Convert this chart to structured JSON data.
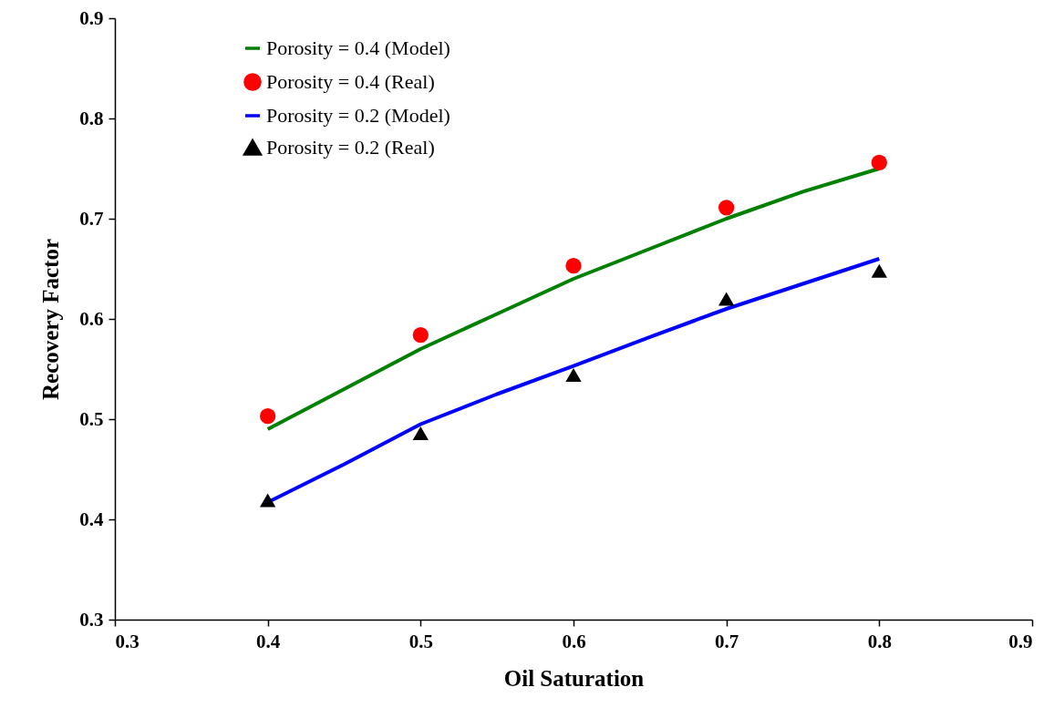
{
  "chart_data": {
    "type": "line",
    "xlabel": "Oil Saturation",
    "ylabel": "Recovery Factor",
    "xlim": [
      0.3,
      0.9
    ],
    "ylim": [
      0.3,
      0.9
    ],
    "xticks": [
      0.3,
      0.4,
      0.5,
      0.6,
      0.7,
      0.8,
      0.9
    ],
    "yticks": [
      0.3,
      0.4,
      0.5,
      0.6,
      0.7,
      0.8,
      0.9
    ],
    "legend": "top left",
    "series": [
      {
        "name": "Porosity = 0.4 (Model)",
        "marker": "none",
        "color": "#008000",
        "x": [
          0.4,
          0.45,
          0.5,
          0.55,
          0.6,
          0.65,
          0.7,
          0.75,
          0.8
        ],
        "values": [
          0.49,
          0.53,
          0.57,
          0.605,
          0.64,
          0.67,
          0.7,
          0.727,
          0.75
        ]
      },
      {
        "name": "Porosity = 0.4 (Real)",
        "type": "scatter",
        "marker": "circle",
        "color": "#ff0000",
        "x": [
          0.4,
          0.5,
          0.6,
          0.7,
          0.8
        ],
        "values": [
          0.503,
          0.584,
          0.653,
          0.711,
          0.756
        ]
      },
      {
        "name": "Porosity = 0.2 (Model)",
        "marker": "none",
        "color": "#0000ff",
        "x": [
          0.4,
          0.45,
          0.5,
          0.55,
          0.6,
          0.65,
          0.7,
          0.75,
          0.8
        ],
        "values": [
          0.417,
          0.455,
          0.495,
          0.525,
          0.553,
          0.582,
          0.61,
          0.635,
          0.66
        ]
      },
      {
        "name": "Porosity = 0.2 (Real)",
        "type": "scatter",
        "marker": "triangle",
        "color": "#000000",
        "x": [
          0.4,
          0.5,
          0.6,
          0.7,
          0.8
        ],
        "values": [
          0.419,
          0.486,
          0.544,
          0.62,
          0.648
        ]
      }
    ]
  }
}
